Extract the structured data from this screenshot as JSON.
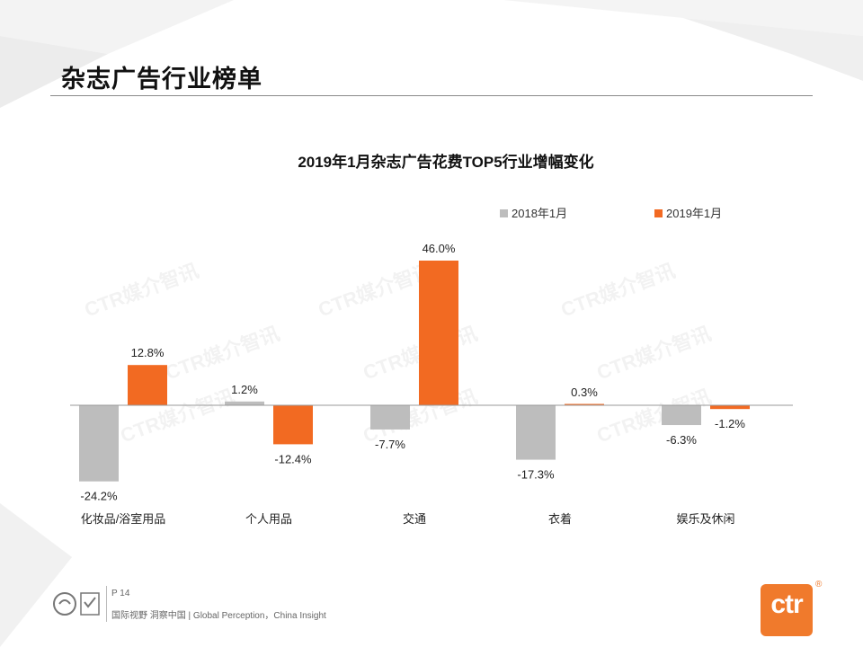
{
  "page": {
    "title": "杂志广告行业榜单",
    "page_number": "P 14",
    "slogan": "国际视野 洞察中国 | Global Perception，China Insight",
    "watermark": "CTR媒介智讯",
    "brand": "ctr",
    "reg_mark": "®"
  },
  "colors": {
    "series_2018": "#bdbdbd",
    "series_2019": "#f26a22",
    "axis": "#999999",
    "brand": "#f07a2c"
  },
  "chart_data": {
    "type": "bar",
    "title": "2019年1月杂志广告花费TOP5行业增幅变化",
    "categories": [
      "化妆品/浴室用品",
      "个人用品",
      "交通",
      "衣着",
      "娱乐及休闲"
    ],
    "series": [
      {
        "name": "2018年1月",
        "values": [
          -24.2,
          1.2,
          -7.7,
          -17.3,
          -6.3
        ],
        "labels": [
          "-24.2%",
          "1.2%",
          "-7.7%",
          "-17.3%",
          "-6.3%"
        ]
      },
      {
        "name": "2019年1月",
        "values": [
          12.8,
          -12.4,
          46.0,
          0.3,
          -1.2
        ],
        "labels": [
          "12.8%",
          "-12.4%",
          "46.0%",
          "0.3%",
          "-1.2%"
        ]
      }
    ],
    "unit": "%",
    "ylim": [
      -30,
      50
    ],
    "legend_position": "top-right",
    "grid": false
  }
}
